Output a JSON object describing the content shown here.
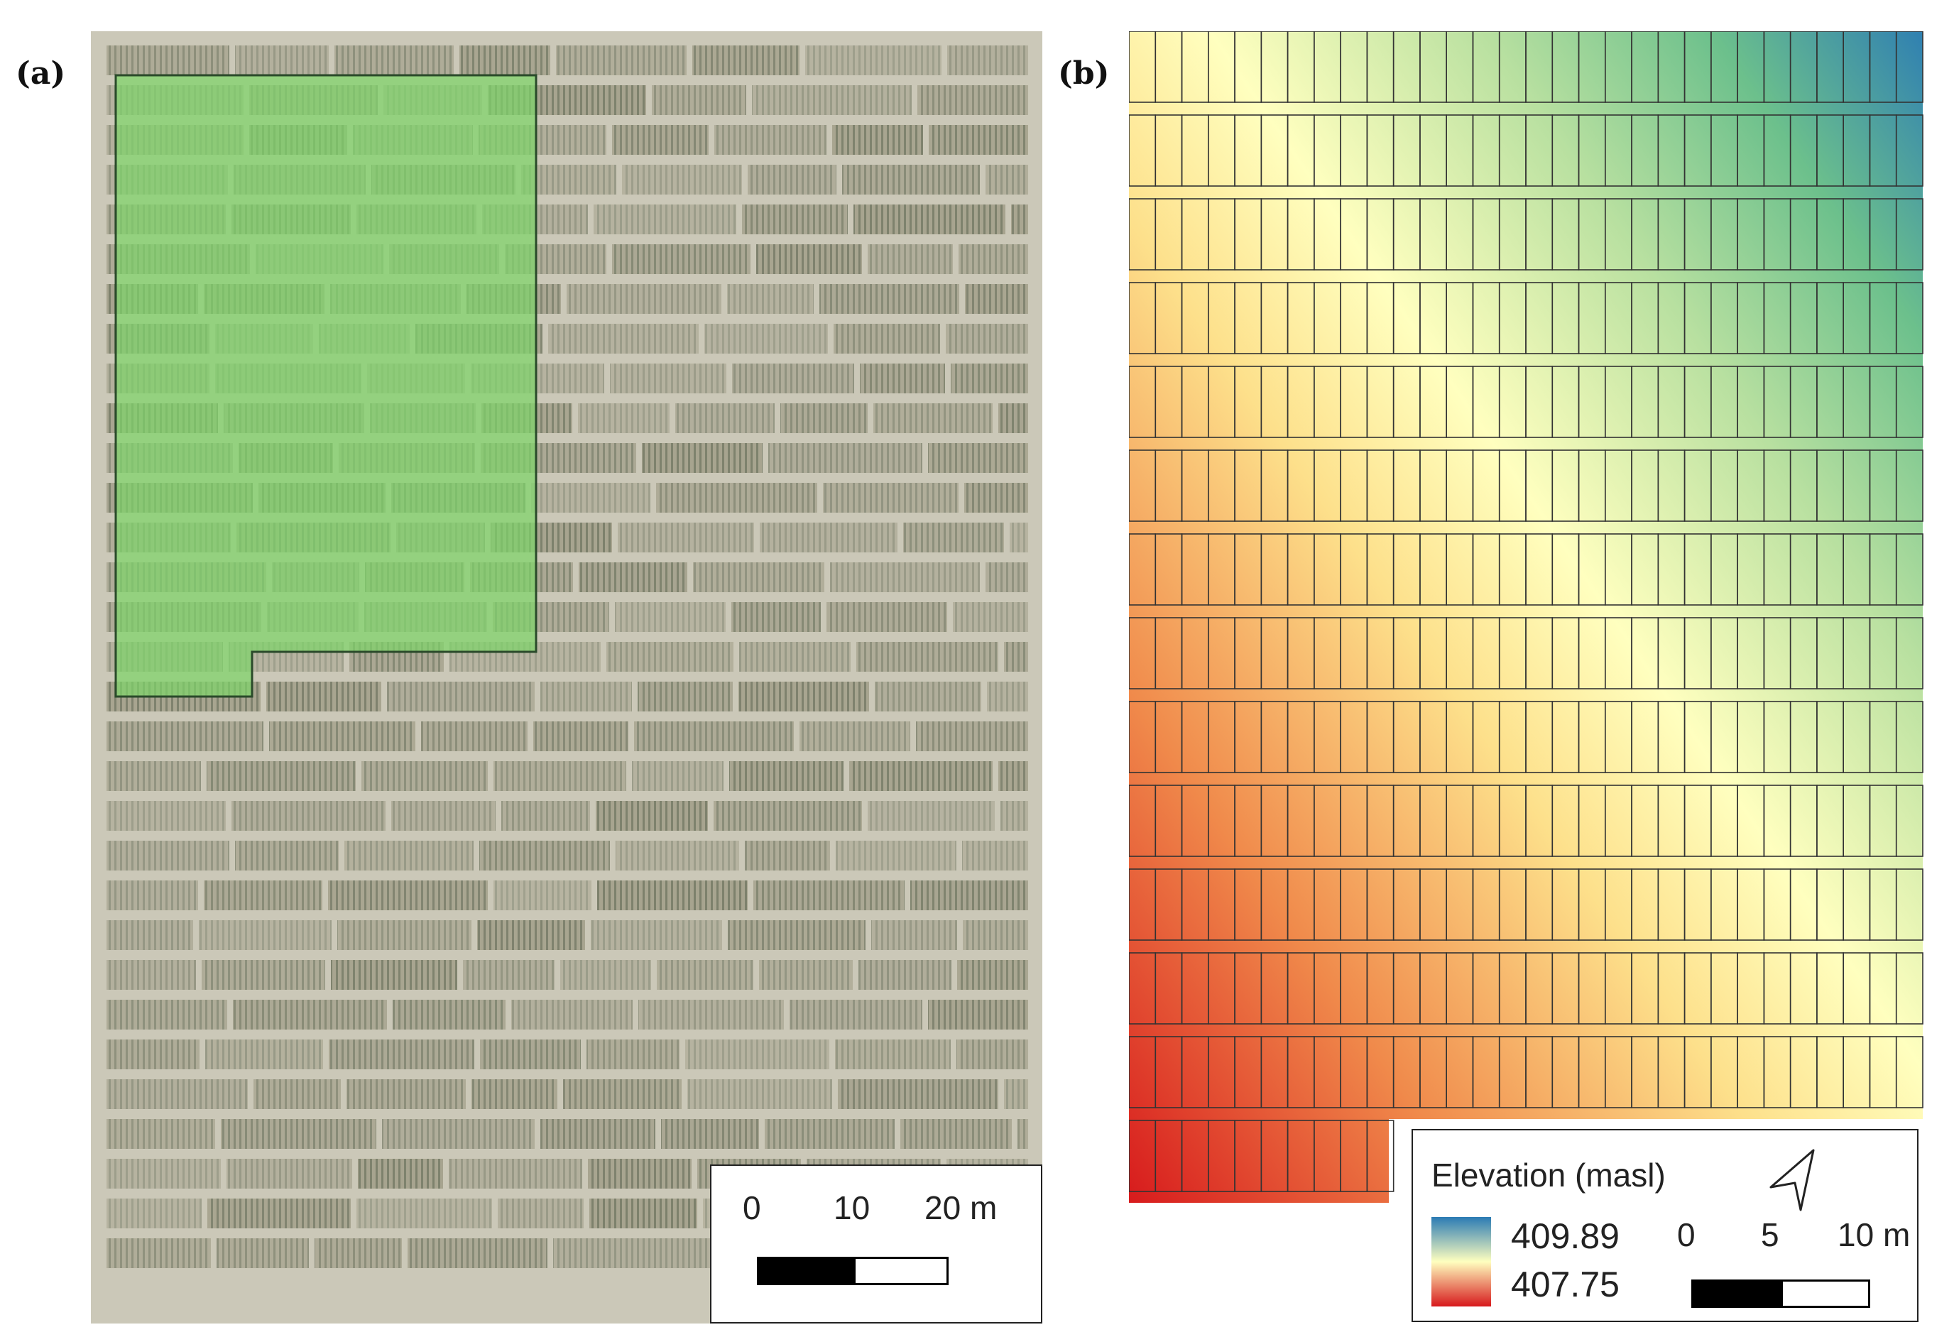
{
  "panels": {
    "a": {
      "label": "(a)",
      "scale": {
        "ticks": [
          "0",
          "10",
          "20 m"
        ]
      }
    },
    "b": {
      "label": "(b)",
      "legend": {
        "title": "Elevation (masl)",
        "max": "409.89",
        "min": "407.75",
        "ramp_colors": [
          "#2b7bb4",
          "#ffffbf",
          "#d7191c"
        ],
        "icon": "north-arrow-icon"
      },
      "scale": {
        "ticks": [
          "0",
          "5",
          "10 m"
        ]
      }
    }
  }
}
